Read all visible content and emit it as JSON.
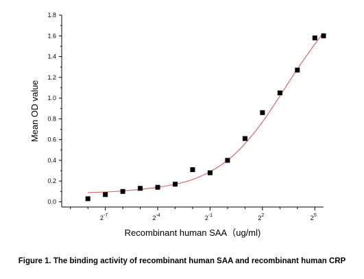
{
  "caption": "Figure 1. The binding activity of recombinant human SAA and recombinant human CRP",
  "chart_data": {
    "type": "scatter",
    "title": "",
    "xlabel": "Recombinant human  SAA（ug/ml)",
    "ylabel": "Mean OD value",
    "x_scale": "log2",
    "xlim": [
      -9.5,
      5.5
    ],
    "ylim": [
      -0.05,
      1.8
    ],
    "x_ticks": [
      {
        "value": -7,
        "base": "2",
        "exp": "-7"
      },
      {
        "value": -4,
        "base": "2",
        "exp": "-4"
      },
      {
        "value": -1,
        "base": "2",
        "exp": "-1"
      },
      {
        "value": 2,
        "base": "2",
        "exp": "2"
      },
      {
        "value": 5,
        "base": "2",
        "exp": "5"
      }
    ],
    "y_ticks": [
      "0.0",
      "0.2",
      "0.4",
      "0.6",
      "0.8",
      "1.0",
      "1.2",
      "1.4",
      "1.6",
      "1.8"
    ],
    "series": [
      {
        "points": [
          {
            "x": -8.0,
            "y": 0.03
          },
          {
            "x": -7.0,
            "y": 0.07
          },
          {
            "x": -6.0,
            "y": 0.1
          },
          {
            "x": -5.0,
            "y": 0.13
          },
          {
            "x": -4.0,
            "y": 0.14
          },
          {
            "x": -3.0,
            "y": 0.17
          },
          {
            "x": -2.0,
            "y": 0.31
          },
          {
            "x": -1.0,
            "y": 0.28
          },
          {
            "x": 0.0,
            "y": 0.4
          },
          {
            "x": 1.0,
            "y": 0.61
          },
          {
            "x": 2.0,
            "y": 0.86
          },
          {
            "x": 3.0,
            "y": 1.05
          },
          {
            "x": 4.0,
            "y": 1.27
          },
          {
            "x": 5.0,
            "y": 1.58
          },
          {
            "x": 5.5,
            "y": 1.6
          }
        ],
        "marker_color": "#000000"
      }
    ],
    "fit_curve": {
      "color": "#e06666",
      "points": [
        {
          "x": -8.0,
          "y": 0.09
        },
        {
          "x": -7.0,
          "y": 0.095
        },
        {
          "x": -6.0,
          "y": 0.105
        },
        {
          "x": -5.0,
          "y": 0.12
        },
        {
          "x": -4.0,
          "y": 0.14
        },
        {
          "x": -3.0,
          "y": 0.17
        },
        {
          "x": -2.0,
          "y": 0.215
        },
        {
          "x": -1.0,
          "y": 0.29
        },
        {
          "x": 0.0,
          "y": 0.4
        },
        {
          "x": 1.0,
          "y": 0.56
        },
        {
          "x": 2.0,
          "y": 0.77
        },
        {
          "x": 3.0,
          "y": 1.02
        },
        {
          "x": 4.0,
          "y": 1.28
        },
        {
          "x": 5.0,
          "y": 1.52
        },
        {
          "x": 5.5,
          "y": 1.63
        }
      ]
    },
    "grid": false,
    "legend": "none"
  }
}
